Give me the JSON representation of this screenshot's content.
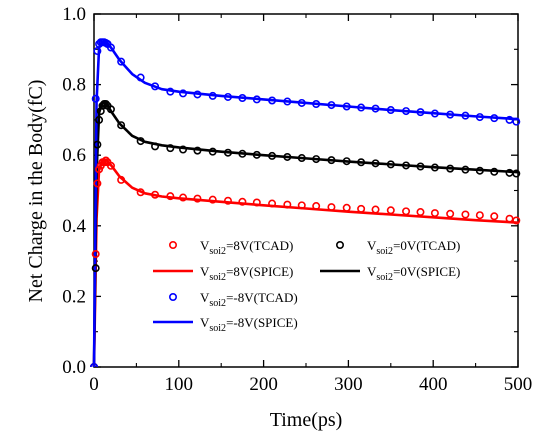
{
  "chart_data": {
    "type": "scatter",
    "xlabel": "Time(ps)",
    "ylabel": "Net Charge in the Body(fC)",
    "xlim": [
      0,
      500
    ],
    "ylim": [
      0,
      1.0
    ],
    "xticks": [
      "0",
      "100",
      "200",
      "300",
      "400",
      "500"
    ],
    "yticks": [
      "0.0",
      "0.2",
      "0.4",
      "0.6",
      "0.8",
      "1.0"
    ],
    "legend_position": "bottom-left inside",
    "grid": false,
    "series": [
      {
        "name": "V_soi2=8V(TCAD)",
        "name_parts": {
          "main": "V",
          "sub": "soi2",
          "rest": "=8V(TCAD)"
        },
        "kind": "markers",
        "color": "#ff0000",
        "x": [
          0,
          2,
          4,
          6,
          8,
          10,
          12,
          14,
          16,
          20,
          32,
          55,
          72,
          90,
          105,
          122,
          140,
          158,
          175,
          192,
          210,
          228,
          245,
          262,
          280,
          298,
          315,
          332,
          350,
          368,
          385,
          402,
          420,
          438,
          455,
          472,
          490,
          498
        ],
        "y": [
          0.0,
          0.32,
          0.52,
          0.56,
          0.57,
          0.58,
          0.58,
          0.585,
          0.58,
          0.57,
          0.53,
          0.495,
          0.488,
          0.484,
          0.48,
          0.477,
          0.474,
          0.471,
          0.468,
          0.466,
          0.463,
          0.46,
          0.458,
          0.456,
          0.453,
          0.451,
          0.448,
          0.446,
          0.444,
          0.441,
          0.439,
          0.436,
          0.434,
          0.432,
          0.43,
          0.427,
          0.42,
          0.415
        ]
      },
      {
        "name": "V_soi2=8V(SPICE)",
        "name_parts": {
          "main": "V",
          "sub": "soi2",
          "rest": "=8V(SPICE)"
        },
        "kind": "line",
        "color": "#ff0000",
        "x": [
          0,
          3,
          6,
          9,
          12,
          15,
          20,
          30,
          45,
          60,
          80,
          100,
          150,
          200,
          250,
          300,
          350,
          400,
          450,
          500
        ],
        "y": [
          0.0,
          0.42,
          0.56,
          0.58,
          0.588,
          0.585,
          0.572,
          0.54,
          0.508,
          0.492,
          0.483,
          0.478,
          0.468,
          0.458,
          0.449,
          0.44,
          0.432,
          0.424,
          0.416,
          0.409
        ]
      },
      {
        "name": "V_soi2=0V(TCAD)",
        "name_parts": {
          "main": "V",
          "sub": "soi2",
          "rest": "=0V(TCAD)"
        },
        "kind": "markers",
        "color": "#000000",
        "x": [
          0,
          2,
          4,
          6,
          8,
          10,
          12,
          14,
          16,
          20,
          32,
          55,
          72,
          90,
          105,
          122,
          140,
          158,
          175,
          192,
          210,
          228,
          245,
          262,
          280,
          298,
          315,
          332,
          350,
          368,
          385,
          402,
          420,
          438,
          455,
          472,
          490,
          498
        ],
        "y": [
          0.0,
          0.28,
          0.63,
          0.7,
          0.725,
          0.74,
          0.745,
          0.745,
          0.74,
          0.73,
          0.685,
          0.64,
          0.625,
          0.62,
          0.616,
          0.613,
          0.61,
          0.607,
          0.604,
          0.601,
          0.598,
          0.595,
          0.592,
          0.589,
          0.586,
          0.583,
          0.58,
          0.577,
          0.574,
          0.571,
          0.568,
          0.565,
          0.562,
          0.559,
          0.556,
          0.553,
          0.55,
          0.548
        ]
      },
      {
        "name": "V_soi2=0V(SPICE)",
        "name_parts": {
          "main": "V",
          "sub": "soi2",
          "rest": "=0V(SPICE)"
        },
        "kind": "line",
        "color": "#000000",
        "x": [
          0,
          3,
          6,
          9,
          12,
          15,
          20,
          30,
          45,
          60,
          80,
          100,
          150,
          200,
          250,
          300,
          350,
          400,
          450,
          500
        ],
        "y": [
          0.0,
          0.55,
          0.72,
          0.745,
          0.75,
          0.745,
          0.725,
          0.69,
          0.655,
          0.638,
          0.628,
          0.622,
          0.61,
          0.6,
          0.591,
          0.582,
          0.574,
          0.566,
          0.559,
          0.552
        ]
      },
      {
        "name": "V_soi2=-8V(TCAD)",
        "name_parts": {
          "main": "V",
          "sub": "soi2",
          "rest": "=-8V(TCAD)"
        },
        "kind": "markers",
        "color": "#0000ff",
        "x": [
          0,
          2,
          4,
          6,
          8,
          10,
          12,
          14,
          16,
          20,
          32,
          55,
          72,
          90,
          105,
          122,
          140,
          158,
          175,
          192,
          210,
          228,
          245,
          262,
          280,
          298,
          315,
          332,
          350,
          368,
          385,
          402,
          420,
          438,
          455,
          472,
          490,
          498
        ],
        "y": [
          0.0,
          0.76,
          0.895,
          0.915,
          0.92,
          0.92,
          0.92,
          0.918,
          0.915,
          0.905,
          0.865,
          0.82,
          0.795,
          0.78,
          0.775,
          0.772,
          0.768,
          0.765,
          0.762,
          0.758,
          0.755,
          0.752,
          0.748,
          0.745,
          0.742,
          0.738,
          0.735,
          0.732,
          0.728,
          0.725,
          0.722,
          0.718,
          0.715,
          0.712,
          0.708,
          0.705,
          0.7,
          0.695
        ]
      },
      {
        "name": "V_soi2=-8V(SPICE)",
        "name_parts": {
          "main": "V",
          "sub": "soi2",
          "rest": "=-8V(SPICE)"
        },
        "kind": "line",
        "color": "#0000ff",
        "x": [
          0,
          3,
          6,
          9,
          12,
          15,
          20,
          30,
          45,
          60,
          80,
          100,
          150,
          200,
          250,
          300,
          350,
          400,
          450,
          500
        ],
        "y": [
          0.0,
          0.75,
          0.905,
          0.92,
          0.922,
          0.918,
          0.905,
          0.87,
          0.83,
          0.805,
          0.787,
          0.78,
          0.768,
          0.758,
          0.748,
          0.738,
          0.728,
          0.719,
          0.71,
          0.702
        ]
      }
    ]
  }
}
